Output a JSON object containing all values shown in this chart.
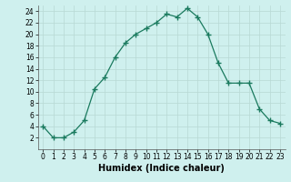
{
  "x": [
    0,
    1,
    2,
    3,
    4,
    5,
    6,
    7,
    8,
    9,
    10,
    11,
    12,
    13,
    14,
    15,
    16,
    17,
    18,
    19,
    20,
    21,
    22,
    23
  ],
  "y": [
    4,
    2,
    2,
    3,
    5,
    10.5,
    12.5,
    16,
    18.5,
    20,
    21,
    22,
    23.5,
    23,
    24.5,
    23,
    20,
    15,
    11.5,
    11.5,
    11.5,
    7,
    5,
    4.5
  ],
  "xlabel": "Humidex (Indice chaleur)",
  "ylim": [
    0,
    25
  ],
  "xlim": [
    -0.5,
    23.5
  ],
  "yticks": [
    2,
    4,
    6,
    8,
    10,
    12,
    14,
    16,
    18,
    20,
    22,
    24
  ],
  "xticks": [
    0,
    1,
    2,
    3,
    4,
    5,
    6,
    7,
    8,
    9,
    10,
    11,
    12,
    13,
    14,
    15,
    16,
    17,
    18,
    19,
    20,
    21,
    22,
    23
  ],
  "xtick_labels": [
    "0",
    "1",
    "2",
    "3",
    "4",
    "5",
    "6",
    "7",
    "8",
    "9",
    "10",
    "11",
    "12",
    "13",
    "14",
    "15",
    "16",
    "17",
    "18",
    "19",
    "20",
    "21",
    "22",
    "23"
  ],
  "line_color": "#1a7a5e",
  "marker": "+",
  "marker_size": 4,
  "bg_color": "#cff0ee",
  "grid_color": "#b8d8d4",
  "xlabel_fontsize": 7,
  "tick_fontsize": 5.5
}
